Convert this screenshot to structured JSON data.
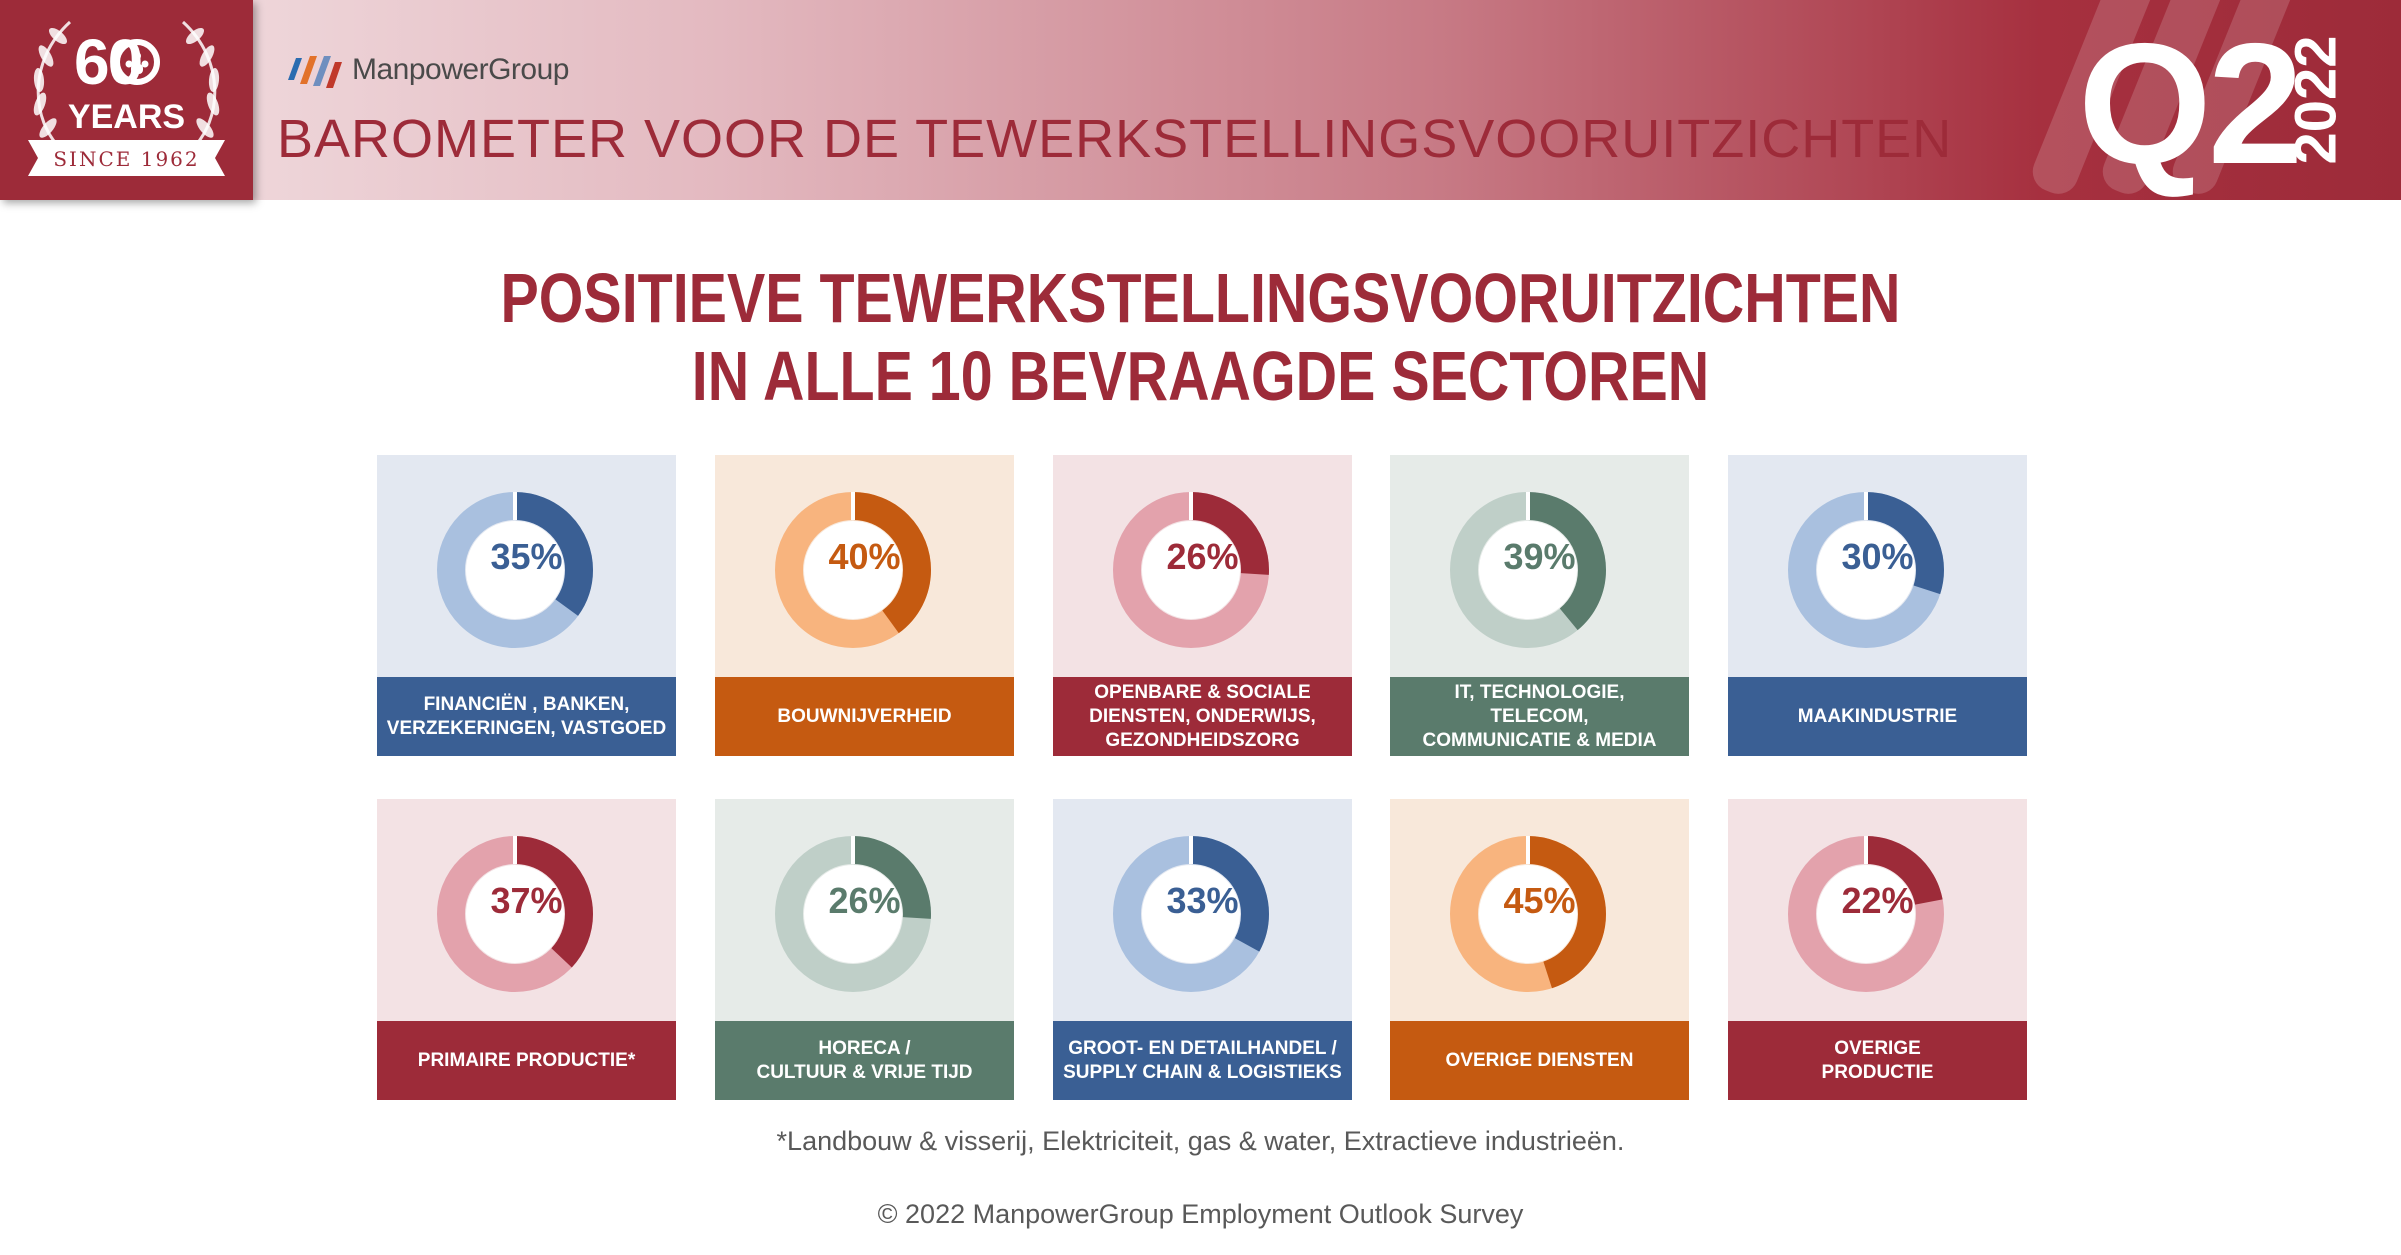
{
  "header": {
    "badge": {
      "big": "60",
      "sub": "YEARS",
      "ribbon": "SINCE 1962"
    },
    "brand": "ManpowerGroup",
    "title": "BAROMETER VOOR DE TEWERKSTELLINGSVOORUITZICHTEN",
    "quarter": "Q2",
    "year": "2022"
  },
  "headline": {
    "line1": "POSITIEVE TEWERKSTELLINGSVOORUITZICHTEN",
    "line2": "IN ALLE 10 BEVRAAGDE SECTOREN"
  },
  "colors": {
    "blue": {
      "dark": "#3a5f94",
      "light": "#a9c0df",
      "bg": "#e3e8f1"
    },
    "orange": {
      "dark": "#c55a11",
      "light": "#f8b47e",
      "bg": "#f8e8da"
    },
    "red": {
      "dark": "#9d2b39",
      "light": "#e3a2ac",
      "bg": "#f3e2e4"
    },
    "green": {
      "dark": "#5a7b6c",
      "light": "#bfcfc8",
      "bg": "#e6ebe8"
    }
  },
  "chart_data": [
    {
      "type": "pie",
      "variant": "donut",
      "label": "FINANCIËN , BANKEN,\nVERZEKERINGEN, VASTGOED",
      "value": 35,
      "display": "35%",
      "theme": "blue"
    },
    {
      "type": "pie",
      "variant": "donut",
      "label": "BOUWNIJVERHEID",
      "value": 40,
      "display": "40%",
      "theme": "orange"
    },
    {
      "type": "pie",
      "variant": "donut",
      "label": "OPENBARE & SOCIALE\nDIENSTEN, ONDERWIJS,\nGEZONDHEIDSZORG",
      "value": 26,
      "display": "26%",
      "theme": "red"
    },
    {
      "type": "pie",
      "variant": "donut",
      "label": "IT, TECHNOLOGIE,\nTELECOM,\nCOMMUNICATIE & MEDIA",
      "value": 39,
      "display": "39%",
      "theme": "green"
    },
    {
      "type": "pie",
      "variant": "donut",
      "label": "MAAKINDUSTRIE",
      "value": 30,
      "display": "30%",
      "theme": "blue"
    },
    {
      "type": "pie",
      "variant": "donut",
      "label": "PRIMAIRE PRODUCTIE*",
      "value": 37,
      "display": "37%",
      "theme": "red"
    },
    {
      "type": "pie",
      "variant": "donut",
      "label": "HORECA /\nCULTUUR & VRIJE TIJD",
      "value": 26,
      "display": "26%",
      "theme": "green"
    },
    {
      "type": "pie",
      "variant": "donut",
      "label": "GROOT- EN DETAILHANDEL /\nSUPPLY CHAIN & LOGISTIEKS",
      "value": 33,
      "display": "33%",
      "theme": "blue"
    },
    {
      "type": "pie",
      "variant": "donut",
      "label": "OVERIGE DIENSTEN",
      "value": 45,
      "display": "45%",
      "theme": "orange"
    },
    {
      "type": "pie",
      "variant": "donut",
      "label": "OVERIGE\nPRODUCTIE",
      "value": 22,
      "display": "22%",
      "theme": "red"
    }
  ],
  "footnote": "*Landbouw & visserij, Elektriciteit, gas & water, Extractieve industrieën.",
  "copyright": "© 2022 ManpowerGroup Employment Outlook Survey"
}
